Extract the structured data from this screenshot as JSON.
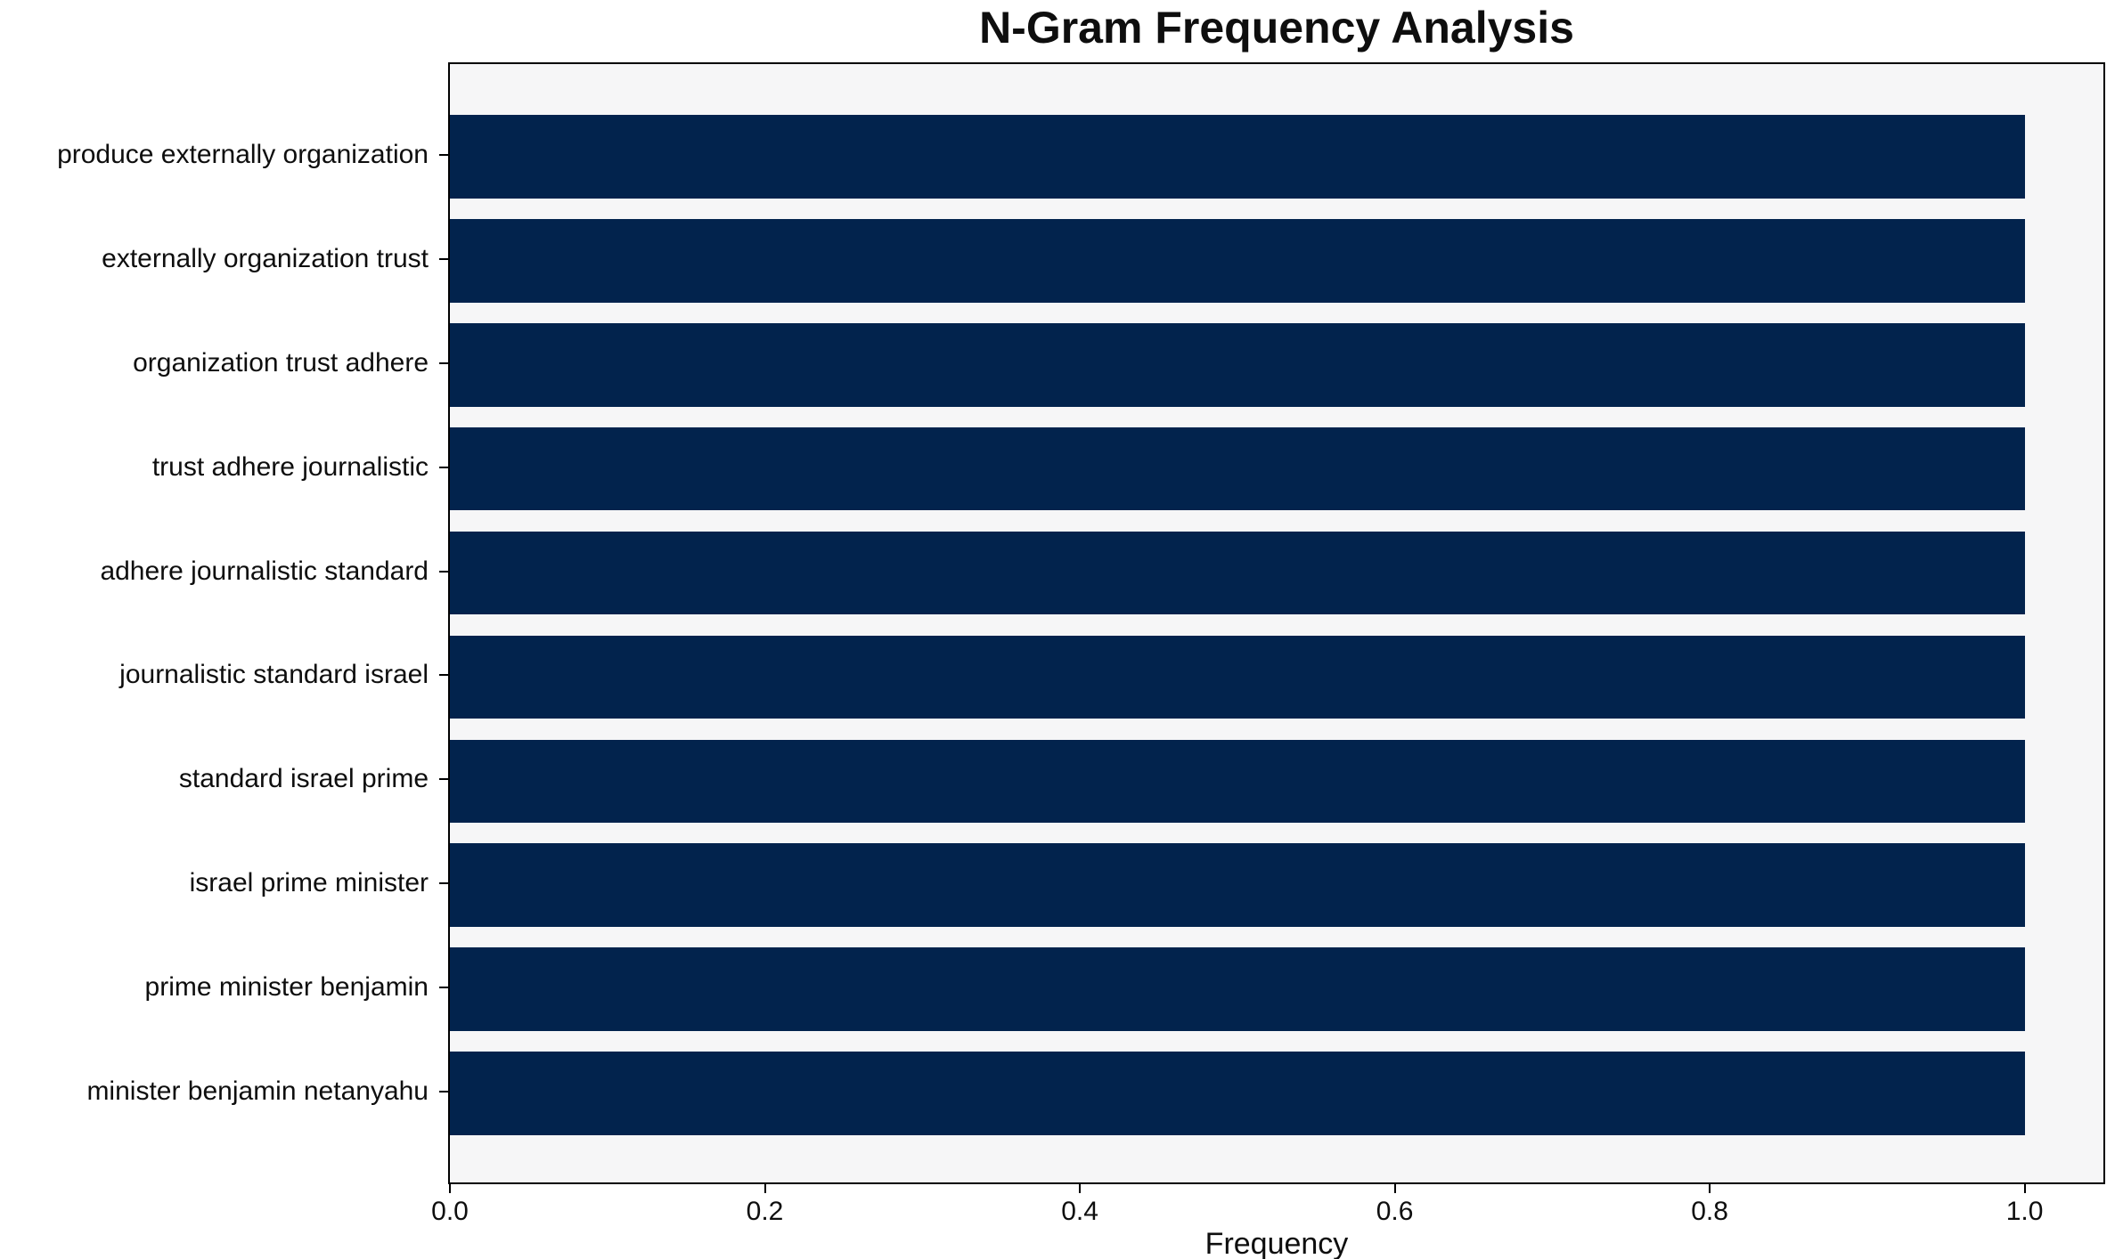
{
  "chart_data": {
    "type": "bar",
    "orientation": "horizontal",
    "title": "N-Gram Frequency Analysis",
    "xlabel": "Frequency",
    "ylabel": "",
    "categories": [
      "produce externally organization",
      "externally organization trust",
      "organization trust adhere",
      "trust adhere journalistic",
      "adhere journalistic standard",
      "journalistic standard israel",
      "standard israel prime",
      "israel prime minister",
      "prime minister benjamin",
      "minister benjamin netanyahu"
    ],
    "values": [
      1.0,
      1.0,
      1.0,
      1.0,
      1.0,
      1.0,
      1.0,
      1.0,
      1.0,
      1.0
    ],
    "xlim": [
      0,
      1.05
    ],
    "ylim": [
      -0.89,
      9.89
    ],
    "bar_height_units": 0.8,
    "xticks": [
      0.0,
      0.2,
      0.4,
      0.6,
      0.8,
      1.0
    ],
    "xtick_labels": [
      "0.0",
      "0.2",
      "0.4",
      "0.6",
      "0.8",
      "1.0"
    ],
    "grid": false,
    "legend": "none",
    "colors": {
      "bar": "#02234d",
      "plot_background": "#f6f6f7",
      "figure_background": "#ffffff",
      "spine": "#000000",
      "text": "#0e0e0e"
    }
  }
}
